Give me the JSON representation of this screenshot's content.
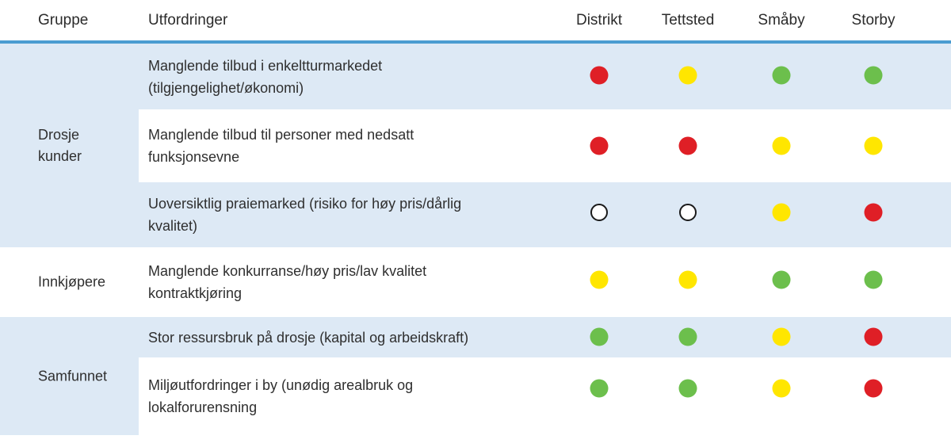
{
  "header": {
    "gruppe": "Gruppe",
    "utfordringer": "Utfordringer",
    "areas": [
      "Distrikt",
      "Tettsted",
      "Småby",
      "Storby"
    ]
  },
  "groups": [
    {
      "label_lines": [
        "Drosje",
        "kunder"
      ]
    },
    {
      "label_lines": [
        "Innkjøpere"
      ]
    },
    {
      "label_lines": [
        "Samfunnet"
      ]
    }
  ],
  "rows": [
    {
      "group_index": 0,
      "challenge_lines": [
        "Manglende tilbud i enkeltturmarkedet",
        "(tilgjengelighet/økonomi)"
      ],
      "ratings": [
        "red",
        "yellow",
        "green",
        "green"
      ]
    },
    {
      "group_index": 0,
      "challenge_lines": [
        "Manglende tilbud til personer med nedsatt",
        "funksjonsevne"
      ],
      "ratings": [
        "red",
        "red",
        "yellow",
        "yellow"
      ]
    },
    {
      "group_index": 0,
      "challenge_lines": [
        "Uoversiktlig praiemarked (risiko for høy pris/dårlig",
        "kvalitet)"
      ],
      "ratings": [
        "none",
        "none",
        "yellow",
        "red"
      ]
    },
    {
      "group_index": 1,
      "challenge_lines": [
        "Manglende konkurranse/høy pris/lav kvalitet",
        "kontraktkjøring"
      ],
      "ratings": [
        "yellow",
        "yellow",
        "green",
        "green"
      ]
    },
    {
      "group_index": 2,
      "challenge_lines": [
        "Stor ressursbruk på drosje (kapital og arbeidskraft)"
      ],
      "ratings": [
        "green",
        "green",
        "yellow",
        "red"
      ]
    },
    {
      "group_index": 2,
      "challenge_lines": [
        "Miljøutfordringer i by (unødig arealbruk og",
        "lokalforurensning"
      ],
      "ratings": [
        "green",
        "green",
        "yellow",
        "red"
      ]
    }
  ],
  "colors": {
    "red": "#df1f26",
    "yellow": "#ffe600",
    "green": "#6cbf4c",
    "none_fill": "#ffffff",
    "none_stroke": "#1a1a1a",
    "row_shade": "#dde9f5",
    "divider": "#4a9cd1",
    "text": "#2f2f2f"
  },
  "chart_data": {
    "type": "table",
    "title": "",
    "columns": [
      "Gruppe",
      "Utfordringer",
      "Distrikt",
      "Tettsted",
      "Småby",
      "Storby"
    ],
    "legend_note": "rating dots: red / yellow / green / open-circle(none)",
    "rows": [
      [
        "Drosje kunder",
        "Manglende tilbud i enkeltturmarkedet (tilgjengelighet/økonomi)",
        "red",
        "yellow",
        "green",
        "green"
      ],
      [
        "Drosje kunder",
        "Manglende tilbud til personer med nedsatt funksjonsevne",
        "red",
        "red",
        "yellow",
        "yellow"
      ],
      [
        "Drosje kunder",
        "Uoversiktlig praiemarked (risiko for høy pris/dårlig kvalitet)",
        "none",
        "none",
        "yellow",
        "red"
      ],
      [
        "Innkjøpere",
        "Manglende konkurranse/høy pris/lav kvalitet kontraktkjøring",
        "yellow",
        "yellow",
        "green",
        "green"
      ],
      [
        "Samfunnet",
        "Stor ressursbruk på drosje (kapital og arbeidskraft)",
        "green",
        "green",
        "yellow",
        "red"
      ],
      [
        "Samfunnet",
        "Miljøutfordringer i by (unødig arealbruk og lokalforurensning",
        "green",
        "green",
        "yellow",
        "red"
      ]
    ]
  }
}
